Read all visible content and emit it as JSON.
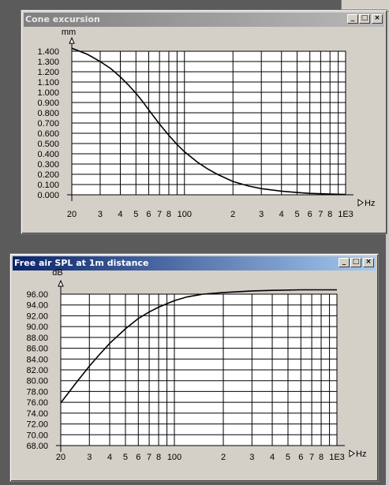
{
  "windows": {
    "cone": {
      "title": "Cone excursion",
      "controls": {
        "minimize": "_",
        "maximize": "□",
        "close": "×"
      }
    },
    "spl": {
      "title": "Free air SPL at 1m distance",
      "controls": {
        "minimize": "_",
        "maximize": "□",
        "close": "×"
      }
    }
  },
  "chart_data": [
    {
      "type": "line",
      "title": "Cone excursion",
      "ylabel": "mm",
      "xlabel": "Hz",
      "x_scale": "log",
      "xlim": [
        20,
        1000
      ],
      "ylim": [
        0,
        1.4
      ],
      "grid": true,
      "y_ticks": [
        "0.000",
        "0.100",
        "0.200",
        "0.300",
        "0.400",
        "0.500",
        "0.600",
        "0.700",
        "0.800",
        "0.900",
        "1.000",
        "1.100",
        "1.200",
        "1.300",
        "1.400"
      ],
      "x_ticks": [
        {
          "value": 20,
          "label": "20"
        },
        {
          "value": 30,
          "label": "3"
        },
        {
          "value": 40,
          "label": "4"
        },
        {
          "value": 50,
          "label": "5"
        },
        {
          "value": 60,
          "label": "6"
        },
        {
          "value": 70,
          "label": "7"
        },
        {
          "value": 80,
          "label": "8"
        },
        {
          "value": 100,
          "label": "100"
        },
        {
          "value": 200,
          "label": "2"
        },
        {
          "value": 300,
          "label": "3"
        },
        {
          "value": 400,
          "label": "4"
        },
        {
          "value": 500,
          "label": "5"
        },
        {
          "value": 600,
          "label": "6"
        },
        {
          "value": 700,
          "label": "7"
        },
        {
          "value": 800,
          "label": "8"
        },
        {
          "value": 1000,
          "label": "1E3"
        }
      ],
      "series": [
        {
          "x": [
            20,
            25,
            30,
            35,
            40,
            45,
            50,
            55,
            60,
            70,
            80,
            90,
            100,
            120,
            140,
            160,
            200,
            250,
            300,
            400,
            500,
            600,
            800,
            1000
          ],
          "y": [
            1.43,
            1.37,
            1.3,
            1.23,
            1.15,
            1.07,
            0.99,
            0.91,
            0.83,
            0.69,
            0.58,
            0.49,
            0.42,
            0.32,
            0.25,
            0.2,
            0.13,
            0.085,
            0.06,
            0.035,
            0.022,
            0.014,
            0.007,
            0.004
          ]
        }
      ]
    },
    {
      "type": "line",
      "title": "Free air SPL at 1m distance",
      "ylabel": "dB",
      "xlabel": "Hz",
      "x_scale": "log",
      "xlim": [
        20,
        1000
      ],
      "ylim": [
        68,
        96
      ],
      "grid": true,
      "y_ticks": [
        "68.00",
        "70.00",
        "72.00",
        "74.00",
        "76.00",
        "78.00",
        "80.00",
        "82.00",
        "84.00",
        "86.00",
        "88.00",
        "90.00",
        "92.00",
        "94.00",
        "96.00"
      ],
      "x_ticks": [
        {
          "value": 20,
          "label": "20"
        },
        {
          "value": 30,
          "label": "3"
        },
        {
          "value": 40,
          "label": "4"
        },
        {
          "value": 50,
          "label": "5"
        },
        {
          "value": 60,
          "label": "6"
        },
        {
          "value": 70,
          "label": "7"
        },
        {
          "value": 80,
          "label": "8"
        },
        {
          "value": 100,
          "label": "100"
        },
        {
          "value": 200,
          "label": "2"
        },
        {
          "value": 300,
          "label": "3"
        },
        {
          "value": 400,
          "label": "4"
        },
        {
          "value": 500,
          "label": "5"
        },
        {
          "value": 600,
          "label": "6"
        },
        {
          "value": 700,
          "label": "7"
        },
        {
          "value": 800,
          "label": "8"
        },
        {
          "value": 1000,
          "label": "1E3"
        }
      ],
      "series": [
        {
          "x": [
            20,
            25,
            30,
            35,
            40,
            50,
            60,
            70,
            80,
            100,
            120,
            150,
            200,
            300,
            400,
            600,
            1000
          ],
          "y": [
            75.9,
            79.7,
            82.7,
            85.0,
            86.9,
            89.6,
            91.5,
            92.7,
            93.6,
            94.8,
            95.5,
            96.0,
            96.3,
            96.6,
            96.7,
            96.8,
            96.8
          ]
        }
      ]
    }
  ]
}
